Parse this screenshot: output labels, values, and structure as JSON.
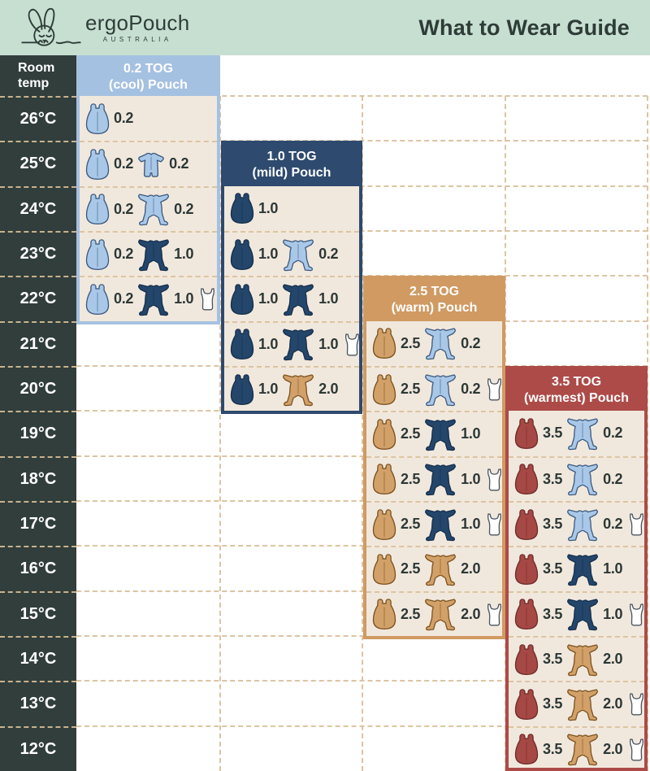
{
  "app": {
    "brand": "ergoPouch",
    "brand_sub": "AUSTRALIA",
    "title": "What to Wear Guide"
  },
  "temp_header": {
    "line1": "Room",
    "line2": "temp"
  },
  "colors": {
    "mint_header": "#c7dfd1",
    "charcoal": "#313e3b",
    "cream_panel": "#f1e8dd",
    "grid_dash": "#dcc4a2",
    "tog_text": "#2c3836",
    "icon_light_blue": "#a9c8e8",
    "icon_light_blue_stroke": "#3b5a80",
    "icon_navy": "#24466b",
    "icon_navy_stroke": "#142f4d",
    "icon_tan": "#d2a069",
    "icon_tan_stroke": "#7c521f",
    "icon_maroon": "#a64845",
    "icon_maroon_stroke": "#6f2d2b",
    "singlet_fill": "#ffffff",
    "singlet_stroke": "#4a555f"
  },
  "chart_data": {
    "type": "table",
    "title": "What to Wear Guide",
    "row_header": "Room temp",
    "temps": [
      "26°C",
      "25°C",
      "24°C",
      "23°C",
      "22°C",
      "21°C",
      "20°C",
      "19°C",
      "18°C",
      "17°C",
      "16°C",
      "15°C",
      "14°C",
      "13°C",
      "12°C"
    ],
    "panels": [
      {
        "id": "0.2-tog",
        "title_line1": "0.2 TOG",
        "title_line2": "(cool) Pouch",
        "color": "#a5c1e1",
        "rows": [
          {
            "temp": "26°C",
            "items": [
              {
                "type": "pouch",
                "color": "light_blue",
                "tog": "0.2"
              }
            ]
          },
          {
            "temp": "25°C",
            "items": [
              {
                "type": "pouch",
                "color": "light_blue",
                "tog": "0.2"
              },
              {
                "type": "romper",
                "color": "light_blue",
                "tog": "0.2"
              }
            ]
          },
          {
            "temp": "24°C",
            "items": [
              {
                "type": "pouch",
                "color": "light_blue",
                "tog": "0.2"
              },
              {
                "type": "onesie",
                "color": "light_blue",
                "tog": "0.2"
              }
            ]
          },
          {
            "temp": "23°C",
            "items": [
              {
                "type": "pouch",
                "color": "light_blue",
                "tog": "0.2"
              },
              {
                "type": "onesie",
                "color": "navy",
                "tog": "1.0"
              }
            ]
          },
          {
            "temp": "22°C",
            "items": [
              {
                "type": "pouch",
                "color": "light_blue",
                "tog": "0.2"
              },
              {
                "type": "onesie",
                "color": "navy",
                "tog": "1.0"
              },
              {
                "type": "singlet"
              }
            ]
          }
        ]
      },
      {
        "id": "1.0-tog",
        "title_line1": "1.0 TOG",
        "title_line2": "(mild) Pouch",
        "color": "#2e4a6e",
        "rows": [
          {
            "temp": "24°C",
            "items": [
              {
                "type": "pouch",
                "color": "navy",
                "tog": "1.0"
              }
            ]
          },
          {
            "temp": "23°C",
            "items": [
              {
                "type": "pouch",
                "color": "navy",
                "tog": "1.0"
              },
              {
                "type": "onesie",
                "color": "light_blue",
                "tog": "0.2"
              }
            ]
          },
          {
            "temp": "22°C",
            "items": [
              {
                "type": "pouch",
                "color": "navy",
                "tog": "1.0"
              },
              {
                "type": "onesie",
                "color": "navy",
                "tog": "1.0"
              }
            ]
          },
          {
            "temp": "21°C",
            "items": [
              {
                "type": "pouch",
                "color": "navy",
                "tog": "1.0"
              },
              {
                "type": "onesie",
                "color": "navy",
                "tog": "1.0"
              },
              {
                "type": "singlet"
              }
            ]
          },
          {
            "temp": "20°C",
            "items": [
              {
                "type": "pouch",
                "color": "navy",
                "tog": "1.0"
              },
              {
                "type": "onesie",
                "color": "tan",
                "tog": "2.0"
              }
            ]
          }
        ]
      },
      {
        "id": "2.5-tog",
        "title_line1": "2.5 TOG",
        "title_line2": "(warm) Pouch",
        "color": "#d09a62",
        "rows": [
          {
            "temp": "21°C",
            "items": [
              {
                "type": "pouch",
                "color": "tan",
                "tog": "2.5"
              },
              {
                "type": "onesie",
                "color": "light_blue",
                "tog": "0.2"
              }
            ]
          },
          {
            "temp": "20°C",
            "items": [
              {
                "type": "pouch",
                "color": "tan",
                "tog": "2.5"
              },
              {
                "type": "onesie",
                "color": "light_blue",
                "tog": "0.2"
              },
              {
                "type": "singlet"
              }
            ]
          },
          {
            "temp": "19°C",
            "items": [
              {
                "type": "pouch",
                "color": "tan",
                "tog": "2.5"
              },
              {
                "type": "onesie",
                "color": "navy",
                "tog": "1.0"
              }
            ]
          },
          {
            "temp": "18°C",
            "items": [
              {
                "type": "pouch",
                "color": "tan",
                "tog": "2.5"
              },
              {
                "type": "onesie",
                "color": "navy",
                "tog": "1.0"
              },
              {
                "type": "singlet"
              }
            ]
          },
          {
            "temp": "17°C",
            "items": [
              {
                "type": "pouch",
                "color": "tan",
                "tog": "2.5"
              },
              {
                "type": "onesie",
                "color": "navy",
                "tog": "1.0"
              },
              {
                "type": "singlet"
              }
            ]
          },
          {
            "temp": "16°C",
            "items": [
              {
                "type": "pouch",
                "color": "tan",
                "tog": "2.5"
              },
              {
                "type": "onesie",
                "color": "tan",
                "tog": "2.0"
              }
            ]
          },
          {
            "temp": "15°C",
            "items": [
              {
                "type": "pouch",
                "color": "tan",
                "tog": "2.5"
              },
              {
                "type": "onesie",
                "color": "tan",
                "tog": "2.0"
              },
              {
                "type": "singlet"
              }
            ]
          }
        ]
      },
      {
        "id": "3.5-tog",
        "title_line1": "3.5 TOG",
        "title_line2": "(warmest) Pouch",
        "color": "#ad4b48",
        "rows": [
          {
            "temp": "19°C",
            "items": [
              {
                "type": "pouch",
                "color": "maroon",
                "tog": "3.5"
              },
              {
                "type": "onesie",
                "color": "light_blue",
                "tog": "0.2"
              }
            ]
          },
          {
            "temp": "18°C",
            "items": [
              {
                "type": "pouch",
                "color": "maroon",
                "tog": "3.5"
              },
              {
                "type": "onesie",
                "color": "light_blue",
                "tog": "0.2"
              }
            ]
          },
          {
            "temp": "17°C",
            "items": [
              {
                "type": "pouch",
                "color": "maroon",
                "tog": "3.5"
              },
              {
                "type": "onesie",
                "color": "light_blue",
                "tog": "0.2"
              },
              {
                "type": "singlet"
              }
            ]
          },
          {
            "temp": "16°C",
            "items": [
              {
                "type": "pouch",
                "color": "maroon",
                "tog": "3.5"
              },
              {
                "type": "onesie",
                "color": "navy",
                "tog": "1.0"
              }
            ]
          },
          {
            "temp": "15°C",
            "items": [
              {
                "type": "pouch",
                "color": "maroon",
                "tog": "3.5"
              },
              {
                "type": "onesie",
                "color": "navy",
                "tog": "1.0"
              },
              {
                "type": "singlet"
              }
            ]
          },
          {
            "temp": "14°C",
            "items": [
              {
                "type": "pouch",
                "color": "maroon",
                "tog": "3.5"
              },
              {
                "type": "onesie",
                "color": "tan",
                "tog": "2.0"
              }
            ]
          },
          {
            "temp": "13°C",
            "items": [
              {
                "type": "pouch",
                "color": "maroon",
                "tog": "3.5"
              },
              {
                "type": "onesie",
                "color": "tan",
                "tog": "2.0"
              },
              {
                "type": "singlet"
              }
            ]
          },
          {
            "temp": "12°C",
            "items": [
              {
                "type": "pouch",
                "color": "maroon",
                "tog": "3.5"
              },
              {
                "type": "onesie",
                "color": "tan",
                "tog": "2.0"
              },
              {
                "type": "singlet"
              }
            ]
          }
        ]
      }
    ]
  }
}
